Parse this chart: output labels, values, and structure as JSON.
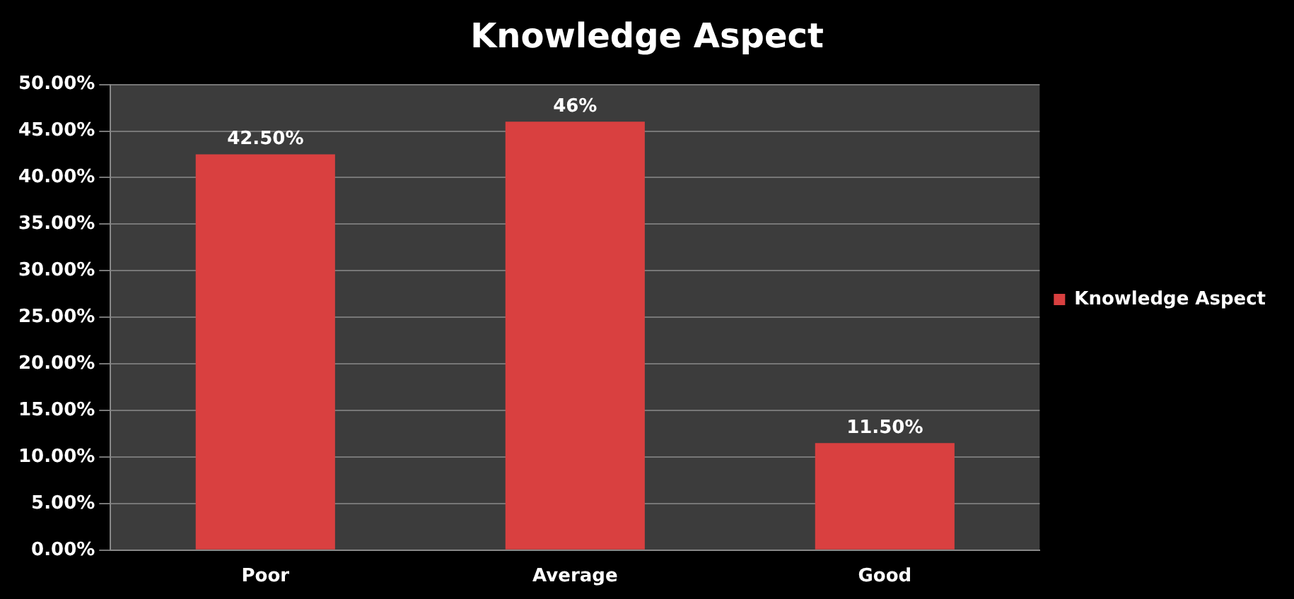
{
  "chart_data": {
    "type": "bar",
    "title": "Knowledge Aspect",
    "categories": [
      "Poor",
      "Average",
      "Good"
    ],
    "series": [
      {
        "name": "Knowledge Aspect",
        "color": "#d94040",
        "values": [
          42.5,
          46,
          11.5
        ],
        "value_labels": [
          "42.50%",
          "46%",
          "11.50%"
        ]
      }
    ],
    "ylim": [
      0,
      50
    ],
    "yticks": [
      {
        "value": 0,
        "label": "0.00%"
      },
      {
        "value": 5,
        "label": "5.00%"
      },
      {
        "value": 10,
        "label": "10.00%"
      },
      {
        "value": 15,
        "label": "15.00%"
      },
      {
        "value": 20,
        "label": "20.00%"
      },
      {
        "value": 25,
        "label": "25.00%"
      },
      {
        "value": 30,
        "label": "30.00%"
      },
      {
        "value": 35,
        "label": "35.00%"
      },
      {
        "value": 40,
        "label": "40.00%"
      },
      {
        "value": 45,
        "label": "45.00%"
      },
      {
        "value": 50,
        "label": "50.00%"
      }
    ],
    "grid": "y",
    "legend": "right"
  }
}
